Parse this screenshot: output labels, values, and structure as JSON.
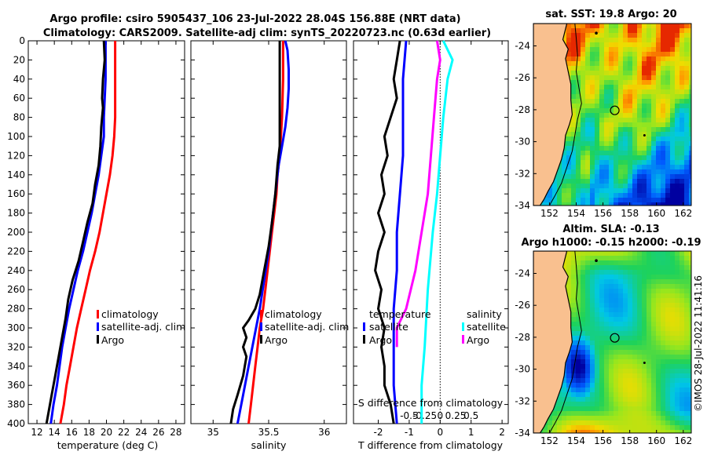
{
  "title_line1": "Argo profile: csiro 5905437_106 23-Jul-2022 28.04S 156.88E (NRT data)",
  "title_line2": "Climatology: CARS2009. Satellite-adj clim: synTS_20220723.nc (0.63d earlier)",
  "copyright": "©IMOS 28-Jul-2022 11:41:16",
  "colors": {
    "climatology": "#ff0000",
    "satellite": "#0000ff",
    "argo": "#000000",
    "satellite_diff": "#00ffff",
    "argo_diff": "#ff00ff"
  },
  "chart_data": [
    {
      "type": "line",
      "id": "temperature",
      "xlabel": "temperature (deg C)",
      "ylabel": "",
      "xlim": [
        11,
        29
      ],
      "ylim": [
        400,
        0
      ],
      "xticks": [
        "12",
        "14",
        "16",
        "18",
        "20",
        "22",
        "24",
        "26",
        "28"
      ],
      "yticks": [
        "0",
        "20",
        "40",
        "60",
        "80",
        "100",
        "120",
        "140",
        "160",
        "180",
        "200",
        "220",
        "240",
        "260",
        "280",
        "300",
        "320",
        "340",
        "360",
        "380",
        "400"
      ],
      "legend": [
        "climatology",
        "satellite-adj. clim",
        "Argo"
      ],
      "series": [
        {
          "name": "climatology",
          "color": "#ff0000",
          "points": [
            [
              21.0,
              0
            ],
            [
              21.0,
              40
            ],
            [
              21.0,
              80
            ],
            [
              20.9,
              100
            ],
            [
              20.7,
              120
            ],
            [
              20.4,
              140
            ],
            [
              20.0,
              160
            ],
            [
              19.6,
              180
            ],
            [
              19.2,
              200
            ],
            [
              18.7,
              220
            ],
            [
              18.1,
              240
            ],
            [
              17.6,
              260
            ],
            [
              17.1,
              280
            ],
            [
              16.6,
              300
            ],
            [
              16.2,
              320
            ],
            [
              15.8,
              340
            ],
            [
              15.4,
              360
            ],
            [
              15.1,
              380
            ],
            [
              14.7,
              400
            ]
          ]
        },
        {
          "name": "satellite-adj. clim",
          "color": "#0000ff",
          "points": [
            [
              19.9,
              0
            ],
            [
              19.9,
              40
            ],
            [
              19.8,
              60
            ],
            [
              19.7,
              80
            ],
            [
              19.7,
              100
            ],
            [
              19.4,
              120
            ],
            [
              19.1,
              140
            ],
            [
              18.7,
              160
            ],
            [
              18.3,
              180
            ],
            [
              17.8,
              200
            ],
            [
              17.3,
              220
            ],
            [
              16.7,
              240
            ],
            [
              16.2,
              260
            ],
            [
              15.7,
              280
            ],
            [
              15.3,
              300
            ],
            [
              14.9,
              320
            ],
            [
              14.6,
              340
            ],
            [
              14.3,
              360
            ],
            [
              13.9,
              380
            ],
            [
              13.6,
              400
            ]
          ]
        },
        {
          "name": "Argo",
          "color": "#000000",
          "points": [
            [
              19.7,
              0
            ],
            [
              19.8,
              20
            ],
            [
              19.6,
              40
            ],
            [
              19.5,
              60
            ],
            [
              19.6,
              70
            ],
            [
              19.4,
              90
            ],
            [
              19.3,
              110
            ],
            [
              19.1,
              130
            ],
            [
              18.7,
              150
            ],
            [
              18.4,
              170
            ],
            [
              17.8,
              190
            ],
            [
              17.3,
              210
            ],
            [
              16.8,
              230
            ],
            [
              16.1,
              250
            ],
            [
              15.6,
              270
            ],
            [
              15.3,
              290
            ],
            [
              14.9,
              310
            ],
            [
              14.5,
              330
            ],
            [
              14.1,
              350
            ],
            [
              13.7,
              370
            ],
            [
              13.3,
              390
            ],
            [
              13.1,
              400
            ]
          ]
        }
      ]
    },
    {
      "type": "line",
      "id": "salinity",
      "xlabel": "salinity",
      "ylabel": "",
      "xlim": [
        34.8,
        36.2
      ],
      "ylim": [
        400,
        0
      ],
      "xticks": [
        "35",
        "35.5",
        "36"
      ],
      "legend": [
        "climatology",
        "satellite-adj. clim",
        "Argo"
      ],
      "series": [
        {
          "name": "climatology",
          "color": "#ff0000",
          "points": [
            [
              35.63,
              0
            ],
            [
              35.63,
              40
            ],
            [
              35.62,
              80
            ],
            [
              35.61,
              100
            ],
            [
              35.6,
              120
            ],
            [
              35.58,
              140
            ],
            [
              35.57,
              160
            ],
            [
              35.55,
              180
            ],
            [
              35.53,
              200
            ],
            [
              35.51,
              220
            ],
            [
              35.49,
              240
            ],
            [
              35.47,
              260
            ],
            [
              35.45,
              280
            ],
            [
              35.42,
              300
            ],
            [
              35.4,
              320
            ],
            [
              35.38,
              340
            ],
            [
              35.36,
              360
            ],
            [
              35.34,
              380
            ],
            [
              35.32,
              400
            ]
          ]
        },
        {
          "name": "satellite-adj. clim",
          "color": "#0000ff",
          "points": [
            [
              35.65,
              0
            ],
            [
              35.67,
              10
            ],
            [
              35.68,
              30
            ],
            [
              35.68,
              50
            ],
            [
              35.67,
              70
            ],
            [
              35.65,
              90
            ],
            [
              35.62,
              110
            ],
            [
              35.59,
              130
            ],
            [
              35.56,
              160
            ],
            [
              35.53,
              190
            ],
            [
              35.5,
              220
            ],
            [
              35.46,
              250
            ],
            [
              35.42,
              280
            ],
            [
              35.37,
              310
            ],
            [
              35.32,
              340
            ],
            [
              35.27,
              370
            ],
            [
              35.22,
              400
            ]
          ]
        },
        {
          "name": "Argo",
          "color": "#000000",
          "points": [
            [
              35.6,
              0
            ],
            [
              35.6,
              40
            ],
            [
              35.6,
              80
            ],
            [
              35.6,
              110
            ],
            [
              35.58,
              130
            ],
            [
              35.56,
              160
            ],
            [
              35.53,
              190
            ],
            [
              35.5,
              215
            ],
            [
              35.46,
              240
            ],
            [
              35.42,
              265
            ],
            [
              35.38,
              280
            ],
            [
              35.32,
              292
            ],
            [
              35.27,
              300
            ],
            [
              35.3,
              310
            ],
            [
              35.27,
              320
            ],
            [
              35.3,
              330
            ],
            [
              35.27,
              350
            ],
            [
              35.22,
              370
            ],
            [
              35.18,
              385
            ],
            [
              35.16,
              400
            ]
          ]
        }
      ]
    },
    {
      "type": "line",
      "id": "difference",
      "xlabel": "T difference from climatology",
      "ylabel": "",
      "xlim": [
        -2.8,
        2.2
      ],
      "ylim": [
        400,
        0
      ],
      "xticks": [
        "-2",
        "-1",
        "0",
        "1",
        "2"
      ],
      "top_axis_label": "S difference from climatology",
      "top_ticks": [
        "-0.5",
        "-0.25",
        "0",
        "0.25",
        "0.5"
      ],
      "legend_temperature_title": "temperature",
      "legend_salinity_title": "salinity",
      "legend": [
        "satellite",
        "Argo",
        "satellite",
        "Argo"
      ],
      "series": [
        {
          "name": "temperature satellite",
          "color": "#0000ff",
          "points": [
            [
              -1.1,
              0
            ],
            [
              -1.2,
              40
            ],
            [
              -1.2,
              80
            ],
            [
              -1.2,
              120
            ],
            [
              -1.3,
              160
            ],
            [
              -1.4,
              200
            ],
            [
              -1.4,
              240
            ],
            [
              -1.5,
              280
            ],
            [
              -1.5,
              320
            ],
            [
              -1.5,
              360
            ],
            [
              -1.4,
              400
            ]
          ]
        },
        {
          "name": "temperature Argo",
          "color": "#000000",
          "points": [
            [
              -1.3,
              0
            ],
            [
              -1.4,
              20
            ],
            [
              -1.5,
              40
            ],
            [
              -1.4,
              60
            ],
            [
              -1.6,
              80
            ],
            [
              -1.8,
              100
            ],
            [
              -1.7,
              120
            ],
            [
              -1.9,
              140
            ],
            [
              -1.8,
              160
            ],
            [
              -2.0,
              180
            ],
            [
              -1.8,
              200
            ],
            [
              -2.0,
              220
            ],
            [
              -2.1,
              240
            ],
            [
              -1.9,
              260
            ],
            [
              -2.0,
              280
            ],
            [
              -1.8,
              300
            ],
            [
              -1.9,
              320
            ],
            [
              -1.8,
              340
            ],
            [
              -1.8,
              360
            ],
            [
              -1.6,
              380
            ],
            [
              -1.5,
              400
            ]
          ]
        },
        {
          "name": "salinity satellite",
          "color": "#00ffff",
          "points": [
            [
              0.05,
              0
            ],
            [
              0.2,
              20
            ],
            [
              0.12,
              40
            ],
            [
              0.05,
              80
            ],
            [
              0.0,
              120
            ],
            [
              -0.05,
              160
            ],
            [
              -0.12,
              200
            ],
            [
              -0.2,
              260
            ],
            [
              -0.25,
              320
            ],
            [
              -0.3,
              360
            ],
            [
              -0.3,
              400
            ]
          ]
        },
        {
          "name": "salinity Argo",
          "color": "#ff00ff",
          "points": [
            [
              -0.05,
              0
            ],
            [
              0.0,
              20
            ],
            [
              -0.05,
              40
            ],
            [
              -0.1,
              80
            ],
            [
              -0.15,
              120
            ],
            [
              -0.2,
              160
            ],
            [
              -0.3,
              200
            ],
            [
              -0.4,
              240
            ],
            [
              -0.55,
              280
            ],
            [
              -0.7,
              300
            ],
            [
              -0.7,
              320
            ]
          ]
        }
      ]
    },
    {
      "type": "heatmap",
      "id": "sst_map",
      "title": "sat. SST: 19.8 Argo: 20",
      "xlim": [
        150.8,
        162.6
      ],
      "ylim": [
        -34,
        -22.6
      ],
      "xticks": [
        "152",
        "154",
        "156",
        "158",
        "160",
        "162"
      ],
      "yticks": [
        "-24",
        "-26",
        "-28",
        "-30",
        "-32",
        "-34"
      ],
      "argo_location": [
        156.88,
        -28.04
      ]
    },
    {
      "type": "heatmap",
      "id": "sla_map",
      "title_line1": "Altim. SLA: -0.13",
      "title_line2": "Argo h1000: -0.15 h2000: -0.19",
      "xlim": [
        150.8,
        162.6
      ],
      "ylim": [
        -34,
        -22.6
      ],
      "xticks": [
        "152",
        "154",
        "156",
        "158",
        "160",
        "162"
      ],
      "yticks": [
        "-24",
        "-26",
        "-28",
        "-30",
        "-32",
        "-34"
      ],
      "argo_location": [
        156.88,
        -28.04
      ]
    }
  ]
}
